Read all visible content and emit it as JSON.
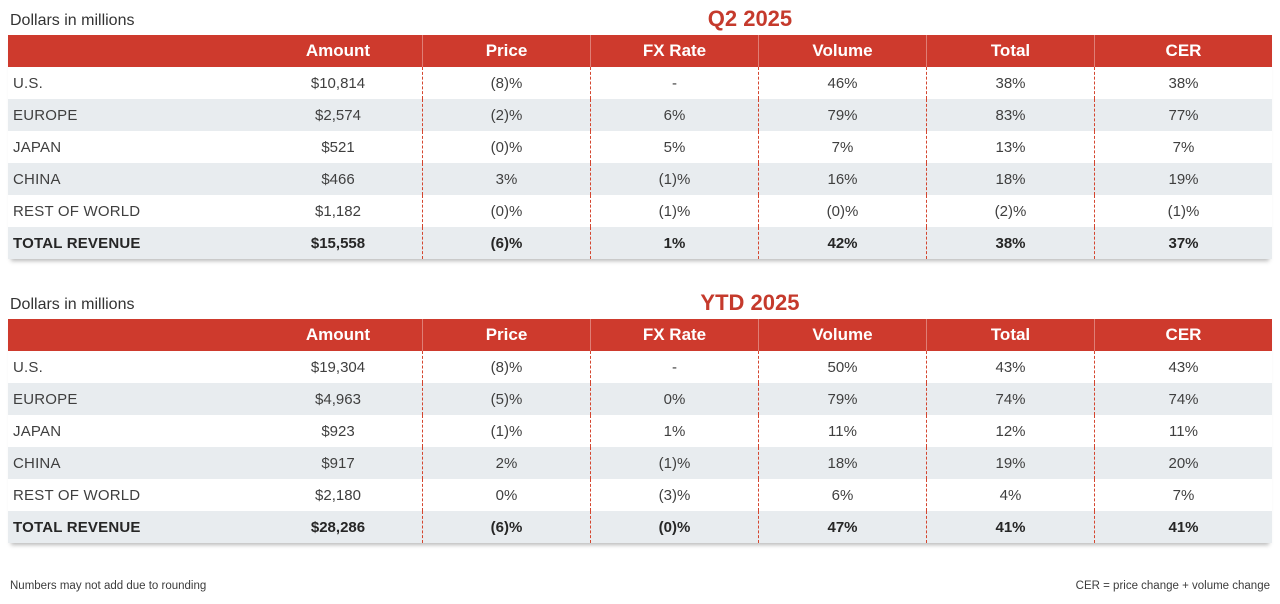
{
  "page": {
    "background": "#ffffff",
    "accent_red": "#ce3a2d",
    "title_red": "#c53a2c",
    "alt_row_bg": "#e8ecef",
    "dashed_divider_color": "#d4462f",
    "body_text_color": "#3f3f3f"
  },
  "tables": [
    {
      "title": "Q2 2025",
      "units_label": "Dollars in millions",
      "columns": [
        "",
        "Amount",
        "Price",
        "FX Rate",
        "Volume",
        "Total",
        "CER"
      ],
      "rows": [
        {
          "label": "U.S.",
          "values": [
            "$10,814",
            "(8)%",
            "-",
            "46%",
            "38%",
            "38%"
          ],
          "bold": false
        },
        {
          "label": "EUROPE",
          "values": [
            "$2,574",
            "(2)%",
            "6%",
            "79%",
            "83%",
            "77%"
          ],
          "bold": false
        },
        {
          "label": "JAPAN",
          "values": [
            "$521",
            "(0)%",
            "5%",
            "7%",
            "13%",
            "7%"
          ],
          "bold": false
        },
        {
          "label": "CHINA",
          "values": [
            "$466",
            "3%",
            "(1)%",
            "16%",
            "18%",
            "19%"
          ],
          "bold": false
        },
        {
          "label": "REST OF WORLD",
          "values": [
            "$1,182",
            "(0)%",
            "(1)%",
            "(0)%",
            "(2)%",
            "(1)%"
          ],
          "bold": false
        },
        {
          "label": "TOTAL REVENUE",
          "values": [
            "$15,558",
            "(6)%",
            "1%",
            "42%",
            "38%",
            "37%"
          ],
          "bold": true
        }
      ]
    },
    {
      "title": "YTD 2025",
      "units_label": "Dollars in millions",
      "columns": [
        "",
        "Amount",
        "Price",
        "FX Rate",
        "Volume",
        "Total",
        "CER"
      ],
      "rows": [
        {
          "label": "U.S.",
          "values": [
            "$19,304",
            "(8)%",
            "-",
            "50%",
            "43%",
            "43%"
          ],
          "bold": false
        },
        {
          "label": "EUROPE",
          "values": [
            "$4,963",
            "(5)%",
            "0%",
            "79%",
            "74%",
            "74%"
          ],
          "bold": false
        },
        {
          "label": "JAPAN",
          "values": [
            "$923",
            "(1)%",
            "1%",
            "11%",
            "12%",
            "11%"
          ],
          "bold": false
        },
        {
          "label": "CHINA",
          "values": [
            "$917",
            "2%",
            "(1)%",
            "18%",
            "19%",
            "20%"
          ],
          "bold": false
        },
        {
          "label": "REST OF WORLD",
          "values": [
            "$2,180",
            "0%",
            "(3)%",
            "6%",
            "4%",
            "7%"
          ],
          "bold": false
        },
        {
          "label": "TOTAL REVENUE",
          "values": [
            "$28,286",
            "(6)%",
            "(0)%",
            "47%",
            "41%",
            "41%"
          ],
          "bold": true
        }
      ]
    }
  ],
  "footnotes": {
    "left": "Numbers may not add due to rounding",
    "right": "CER = price change + volume change"
  }
}
